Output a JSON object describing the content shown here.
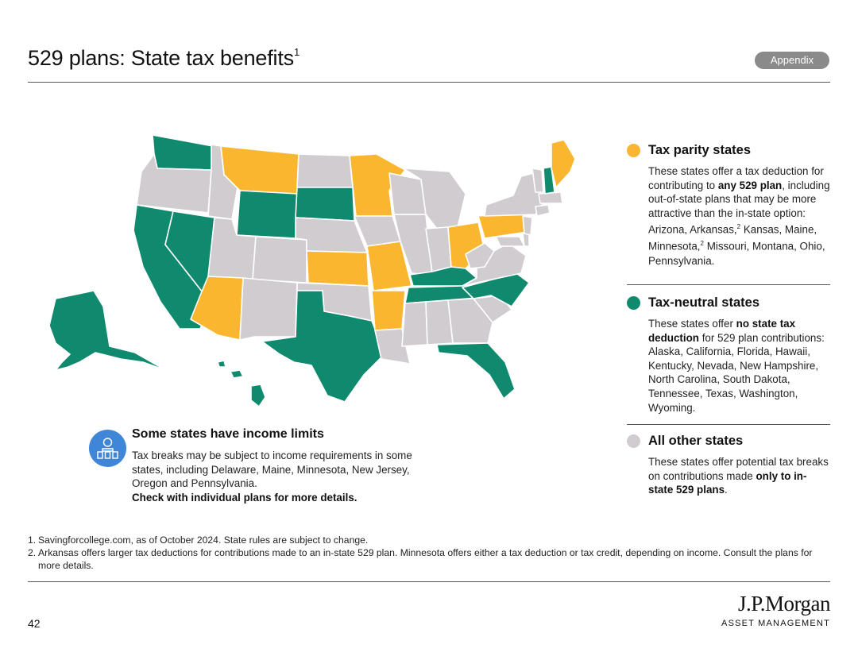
{
  "header": {
    "title": "529 plans: State tax benefits",
    "title_sup": "1",
    "badge": "Appendix"
  },
  "colors": {
    "parity": "#fbb630",
    "neutral": "#0f8a6e",
    "other": "#d0ccd0",
    "icon_blue": "#3f86d8"
  },
  "legend": {
    "parity": {
      "heading": "Tax parity states",
      "text_pre": "These states offer a tax deduction for contributing to ",
      "text_bold": "any 529 plan",
      "text_mid": ", including out-of-state plans that may be more attractive than the in-state option: Arizona, Arkansas,",
      "sup_a": "2",
      "text_mid2": " Kansas, Maine, Minnesota,",
      "sup_b": "2",
      "text_post": " Missouri, Montana, Ohio, Pennsylvania."
    },
    "neutral": {
      "heading": "Tax-neutral states",
      "text_pre": "These states offer ",
      "text_bold": "no state tax deduction",
      "text_post": " for 529 plan contributions: Alaska, California, Florida, Hawaii, Kentucky, Nevada, New Hampshire, North Carolina, South Dakota, Tennessee, Texas, Washington, Wyoming."
    },
    "other": {
      "heading": "All other states",
      "text_pre": "These states offer potential tax breaks on contributions made ",
      "text_bold": "only to in-state 529 plans",
      "text_post": "."
    }
  },
  "income": {
    "icon": "income-people-icon",
    "title": "Some states have income limits",
    "text": "Tax breaks may be subject to income requirements in some states, including Delaware, Maine, Minnesota, New Jersey, Oregon and Pennsylvania.",
    "bold": "Check with individual plans for more details."
  },
  "footnotes": [
    {
      "num": "1.",
      "text": "Savingforcollege.com, as of October 2024. State rules are subject to change."
    },
    {
      "num": "2.",
      "text": "Arkansas offers larger tax deductions for contributions made to an in-state 529 plan. Minnesota offers either a tax deduction or tax credit, depending on income. Consult the plans for more details."
    }
  ],
  "footer": {
    "page": "42",
    "logo": "J.P.Morgan",
    "logo_sub": "ASSET MANAGEMENT"
  },
  "map": {
    "icon": "us-map",
    "states": [
      {
        "id": "WA",
        "cat": "neutral"
      },
      {
        "id": "OR",
        "cat": "other"
      },
      {
        "id": "CA",
        "cat": "neutral"
      },
      {
        "id": "NV",
        "cat": "neutral"
      },
      {
        "id": "ID",
        "cat": "other"
      },
      {
        "id": "MT",
        "cat": "parity"
      },
      {
        "id": "WY",
        "cat": "neutral"
      },
      {
        "id": "UT",
        "cat": "other"
      },
      {
        "id": "AZ",
        "cat": "parity"
      },
      {
        "id": "CO",
        "cat": "other"
      },
      {
        "id": "NM",
        "cat": "other"
      },
      {
        "id": "ND",
        "cat": "other"
      },
      {
        "id": "SD",
        "cat": "neutral"
      },
      {
        "id": "NE",
        "cat": "other"
      },
      {
        "id": "KS",
        "cat": "parity"
      },
      {
        "id": "OK",
        "cat": "other"
      },
      {
        "id": "TX",
        "cat": "neutral"
      },
      {
        "id": "MN",
        "cat": "parity"
      },
      {
        "id": "IA",
        "cat": "other"
      },
      {
        "id": "MO",
        "cat": "parity"
      },
      {
        "id": "AR",
        "cat": "parity"
      },
      {
        "id": "LA",
        "cat": "other"
      },
      {
        "id": "WI",
        "cat": "other"
      },
      {
        "id": "IL",
        "cat": "other"
      },
      {
        "id": "MI",
        "cat": "other"
      },
      {
        "id": "IN",
        "cat": "other"
      },
      {
        "id": "OH",
        "cat": "parity"
      },
      {
        "id": "KY",
        "cat": "neutral"
      },
      {
        "id": "TN",
        "cat": "neutral"
      },
      {
        "id": "MS",
        "cat": "other"
      },
      {
        "id": "AL",
        "cat": "other"
      },
      {
        "id": "GA",
        "cat": "other"
      },
      {
        "id": "FL",
        "cat": "neutral"
      },
      {
        "id": "SC",
        "cat": "other"
      },
      {
        "id": "NC",
        "cat": "neutral"
      },
      {
        "id": "VA",
        "cat": "other"
      },
      {
        "id": "WV",
        "cat": "other"
      },
      {
        "id": "PA",
        "cat": "parity"
      },
      {
        "id": "NY",
        "cat": "other"
      },
      {
        "id": "VT",
        "cat": "other"
      },
      {
        "id": "NH",
        "cat": "neutral"
      },
      {
        "id": "ME",
        "cat": "parity"
      },
      {
        "id": "MA",
        "cat": "other"
      },
      {
        "id": "CT",
        "cat": "other"
      },
      {
        "id": "NJ",
        "cat": "other"
      },
      {
        "id": "MD",
        "cat": "other"
      },
      {
        "id": "DE",
        "cat": "other"
      },
      {
        "id": "AK",
        "cat": "neutral"
      },
      {
        "id": "HI",
        "cat": "neutral"
      }
    ]
  }
}
